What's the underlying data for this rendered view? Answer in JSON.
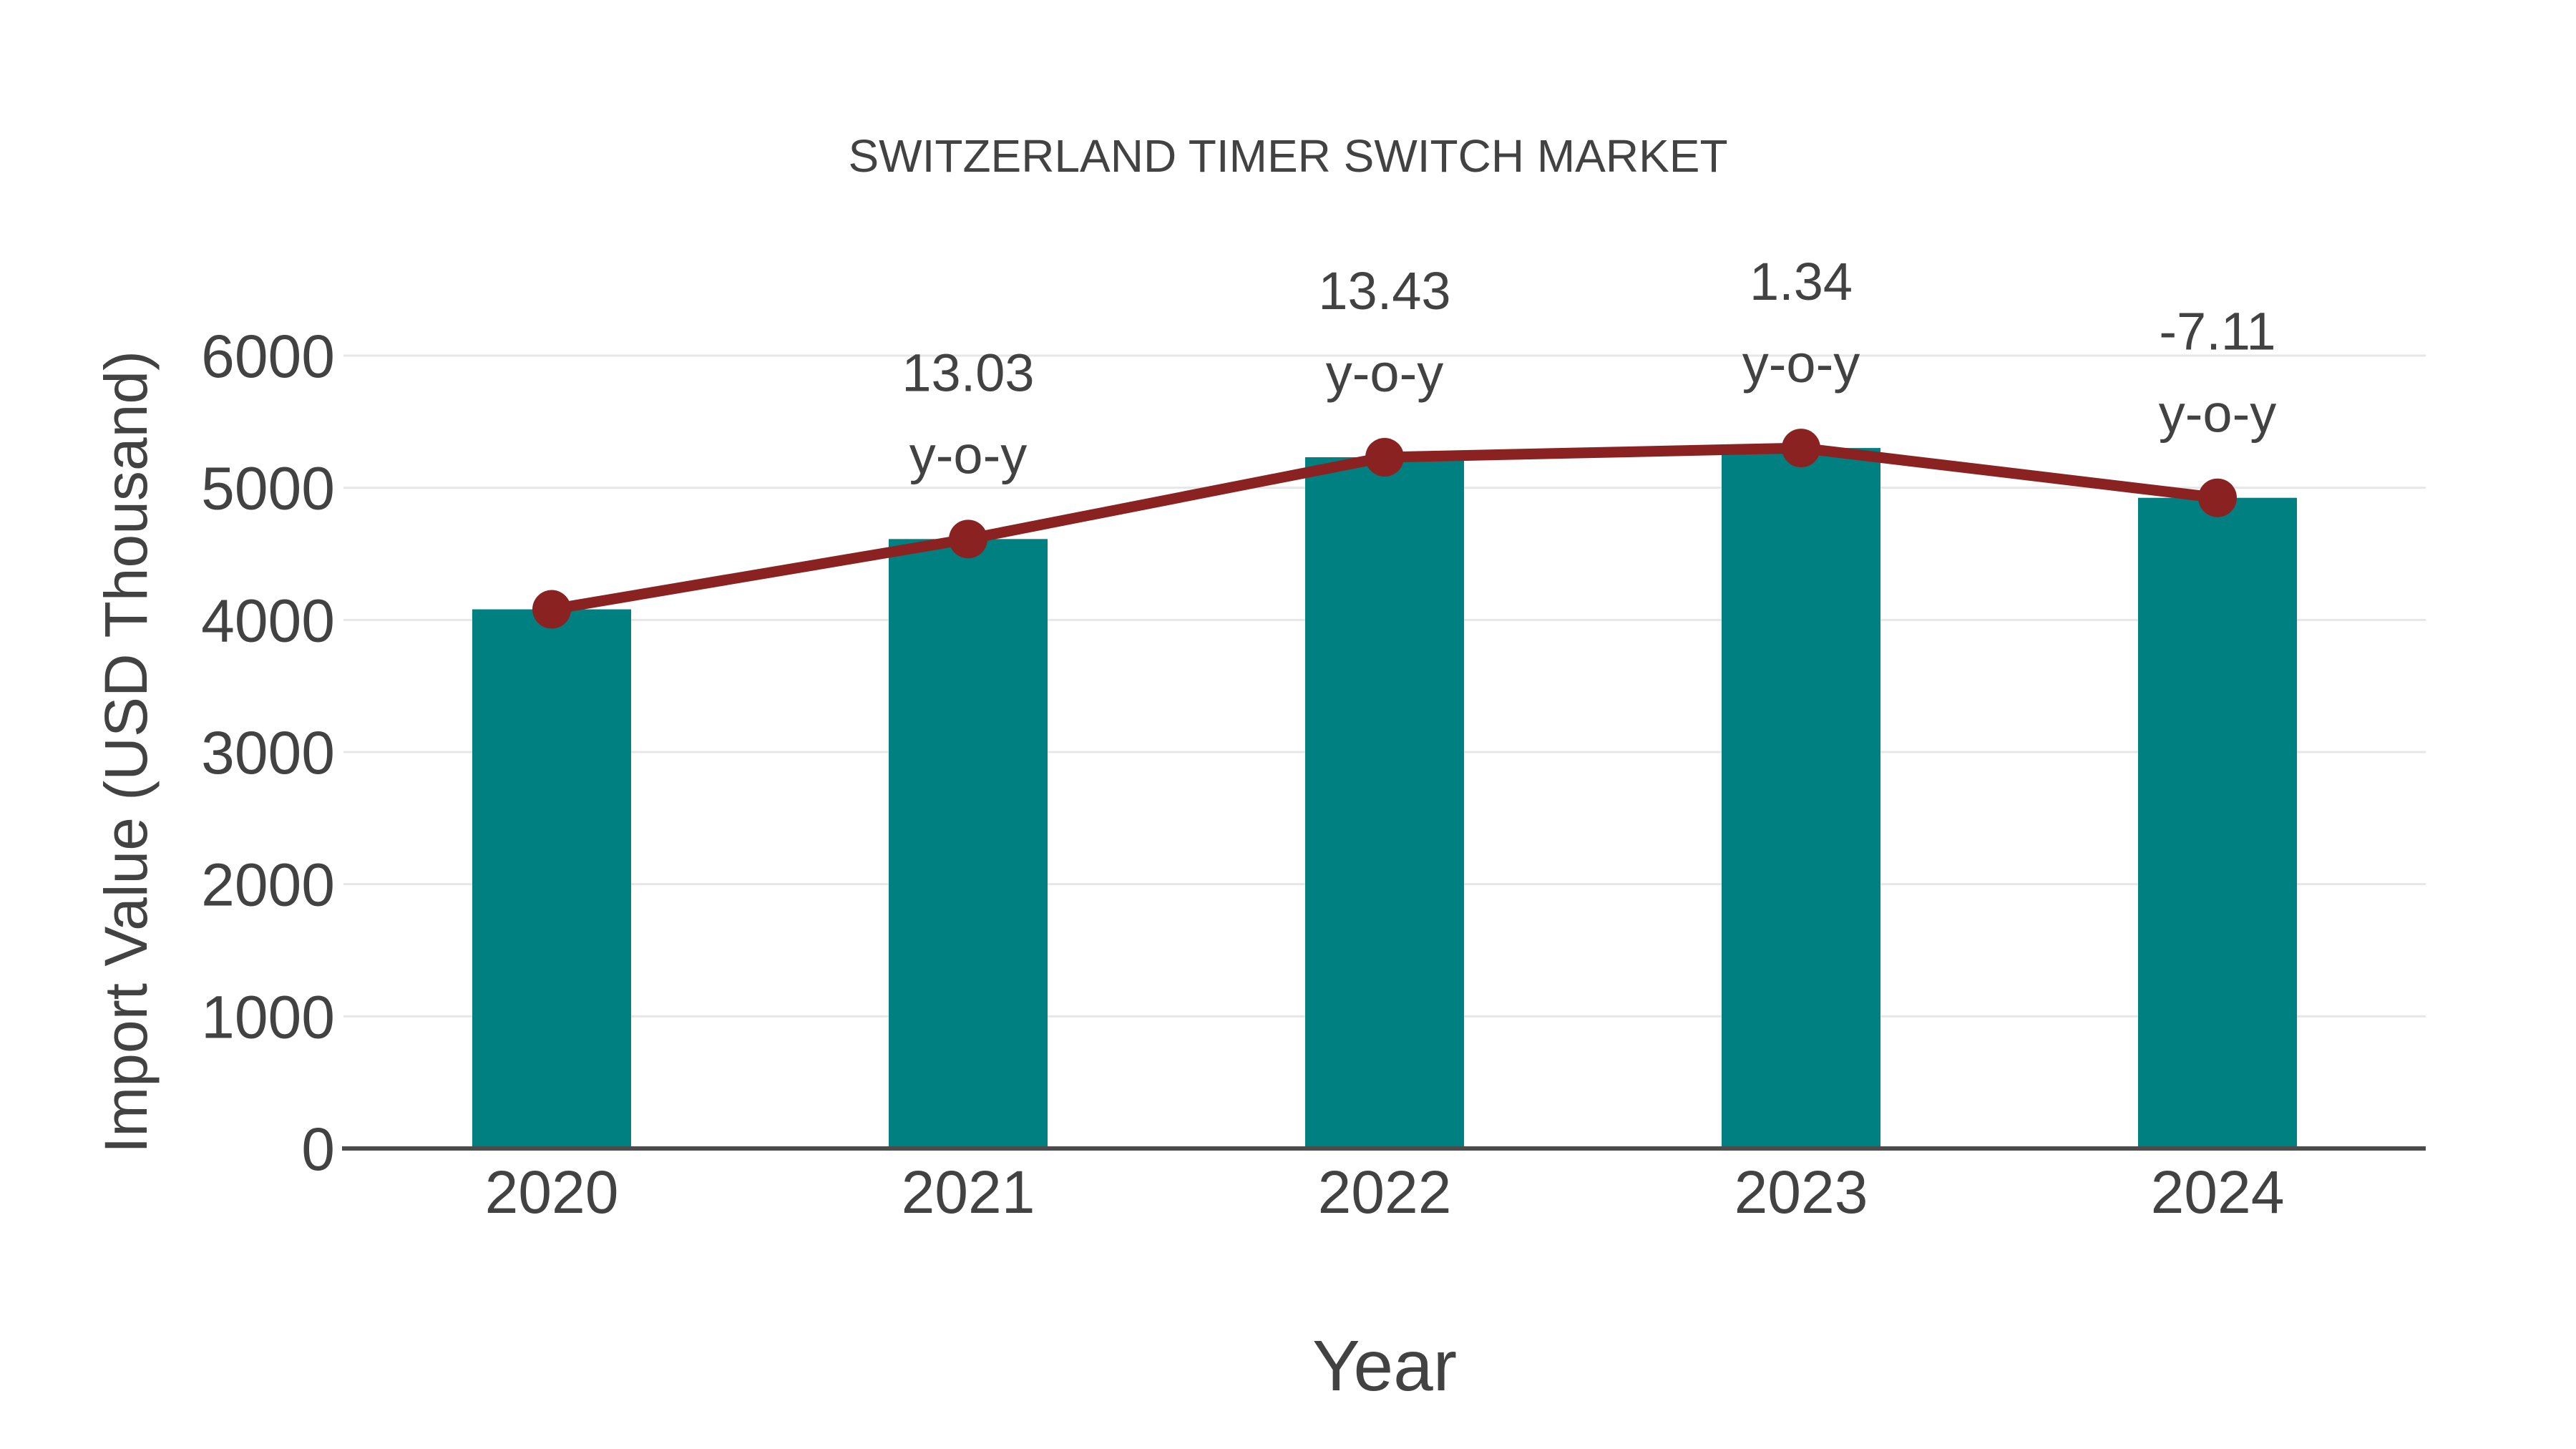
{
  "chart_data": {
    "type": "bar",
    "title": "SWITZERLAND TIMER SWITCH MARKET",
    "xlabel": "Year",
    "ylabel": "Import Value (USD Thousand)",
    "categories": [
      "2020",
      "2021",
      "2022",
      "2023",
      "2024"
    ],
    "series": [
      {
        "name": "Import Value (USD Thousand)",
        "type": "bar",
        "color": "#008080",
        "values": [
          4080,
          4612,
          5231,
          5301,
          4924
        ]
      },
      {
        "name": "y-o-y trend",
        "type": "line",
        "color": "#8b2222",
        "values": [
          4080,
          4612,
          5231,
          5301,
          4924
        ]
      }
    ],
    "annotations": [
      {
        "category": "2021",
        "value_line": "13.03",
        "label_line": "y-o-y"
      },
      {
        "category": "2022",
        "value_line": "13.43",
        "label_line": "y-o-y"
      },
      {
        "category": "2023",
        "value_line": "1.34",
        "label_line": "y-o-y"
      },
      {
        "category": "2024",
        "value_line": "-7.11",
        "label_line": "y-o-y"
      }
    ],
    "yticks": [
      0,
      1000,
      2000,
      3000,
      4000,
      5000,
      6000
    ],
    "ylim": [
      0,
      6000
    ],
    "grid": true,
    "legend_position": "none",
    "colors": {
      "bar": "#008080",
      "line": "#8b2222",
      "text": "#424242",
      "grid": "#e7e7e7",
      "axis": "#4c4c4c",
      "background": "#ffffff"
    }
  }
}
